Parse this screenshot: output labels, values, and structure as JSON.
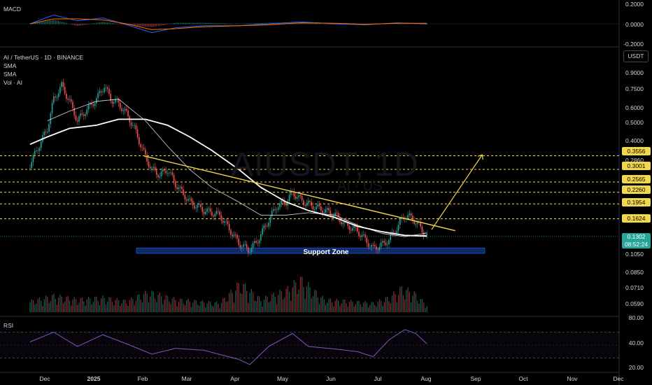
{
  "panes": {
    "macd_title": "MACD",
    "main_title": "AI / TetherUS · 1D · BINANCE",
    "indicators": [
      "SMA",
      "SMA",
      "Vol · AI"
    ],
    "rsi_title": "RSI",
    "currency": "USDT",
    "watermark": "AIUSDT, 1D",
    "watermark_sub": "AI · US"
  },
  "axes": {
    "macd_ticks": [
      "0.2000",
      "0.0000",
      "-0.2000"
    ],
    "price_ticks": [
      "0.9000",
      "0.7500",
      "0.6000",
      "0.5000",
      "0.4000",
      "0.2860",
      "0.1050",
      "0.0850",
      "0.0710",
      "0.0590"
    ],
    "rsi_ticks": [
      "80.00",
      "40.00",
      "20.00"
    ],
    "months": [
      "Dec",
      "2025",
      "Feb",
      "Mar",
      "Apr",
      "May",
      "Jun",
      "Jul",
      "Aug",
      "Sep",
      "Oct",
      "Nov",
      "Dec"
    ]
  },
  "price_levels": [
    "0.3556",
    "0.3001",
    "0.2565",
    "0.2260",
    "0.1954",
    "0.1624"
  ],
  "last_price": {
    "value": "0.1302",
    "countdown": "08:52:24"
  },
  "annotations": {
    "support_zone": "Support Zone"
  },
  "colors": {
    "up": "#26a69a",
    "down": "#ef5350",
    "level": "#f2d64b",
    "trendline": "#f2d64b",
    "sma_fast": "#ffffff",
    "sma_slow": "#ffffff",
    "rsi": "#7e57c2",
    "support_fill": "#0d2a66"
  },
  "chart_data": {
    "type": "line",
    "title": "AI / TetherUS · 1D · BINANCE",
    "xlabel": "",
    "ylabel": "",
    "scale": "log",
    "ylim": [
      0.0535,
      1.08
    ],
    "series": [
      {
        "kind": "close",
        "x": [
          "2024-11-20",
          "2024-12-01",
          "2024-12-05",
          "2024-12-10",
          "2024-12-15",
          "2024-12-20",
          "2024-12-25",
          "2025-01-01",
          "2025-01-06",
          "2025-01-10",
          "2025-01-15",
          "2025-01-20",
          "2025-01-25",
          "2025-02-01",
          "2025-02-05",
          "2025-02-10",
          "2025-02-15",
          "2025-02-20",
          "2025-03-01",
          "2025-03-10",
          "2025-03-20",
          "2025-04-01",
          "2025-04-07",
          "2025-04-12",
          "2025-04-20",
          "2025-04-25",
          "2025-05-01",
          "2025-05-05",
          "2025-05-12",
          "2025-05-18",
          "2025-05-25",
          "2025-06-01",
          "2025-06-08",
          "2025-06-15",
          "2025-06-20",
          "2025-06-25",
          "2025-07-01",
          "2025-07-05",
          "2025-07-10",
          "2025-07-15",
          "2025-07-20",
          "2025-07-25",
          "2025-07-29"
        ],
        "values": [
          0.32,
          0.5,
          0.72,
          0.85,
          0.7,
          0.55,
          0.62,
          0.72,
          0.85,
          0.72,
          0.68,
          0.6,
          0.5,
          0.35,
          0.3,
          0.28,
          0.3,
          0.25,
          0.2,
          0.18,
          0.17,
          0.12,
          0.11,
          0.12,
          0.16,
          0.19,
          0.2,
          0.225,
          0.2,
          0.19,
          0.18,
          0.17,
          0.15,
          0.14,
          0.125,
          0.112,
          0.118,
          0.125,
          0.145,
          0.17,
          0.163,
          0.145,
          0.1302
        ]
      },
      {
        "name": "SMA",
        "kind": "sma_fast",
        "x": [
          "2024-12-01",
          "2024-12-15",
          "2025-01-01",
          "2025-01-15",
          "2025-02-01",
          "2025-02-15",
          "2025-03-01",
          "2025-03-15",
          "2025-04-01",
          "2025-04-15",
          "2025-05-01",
          "2025-05-15",
          "2025-06-01",
          "2025-06-15",
          "2025-07-01",
          "2025-07-15",
          "2025-07-29"
        ],
        "values": [
          0.55,
          0.62,
          0.7,
          0.72,
          0.55,
          0.4,
          0.3,
          0.24,
          0.2,
          0.17,
          0.17,
          0.175,
          0.17,
          0.15,
          0.135,
          0.13,
          0.136
        ]
      },
      {
        "name": "SMA",
        "kind": "sma_slow",
        "x": [
          "2024-11-20",
          "2024-12-01",
          "2024-12-15",
          "2025-01-01",
          "2025-01-15",
          "2025-02-01",
          "2025-02-15",
          "2025-03-01",
          "2025-03-15",
          "2025-04-01",
          "2025-04-15",
          "2025-05-01",
          "2025-05-15",
          "2025-06-01",
          "2025-06-15",
          "2025-07-01",
          "2025-07-15",
          "2025-07-29"
        ],
        "values": [
          0.41,
          0.45,
          0.5,
          0.52,
          0.56,
          0.56,
          0.52,
          0.45,
          0.38,
          0.3,
          0.24,
          0.2,
          0.18,
          0.165,
          0.148,
          0.138,
          0.132,
          0.131
        ]
      }
    ],
    "volume": {
      "x": [
        "2024-11-20",
        "2024-12-05",
        "2024-12-20",
        "2025-01-05",
        "2025-01-20",
        "2025-02-03",
        "2025-02-20",
        "2025-03-05",
        "2025-03-20",
        "2025-04-02",
        "2025-04-15",
        "2025-05-01",
        "2025-05-10",
        "2025-05-25",
        "2025-06-10",
        "2025-06-25",
        "2025-07-05",
        "2025-07-13",
        "2025-07-20",
        "2025-07-29"
      ],
      "values": [
        0.3,
        0.45,
        0.35,
        0.4,
        0.3,
        0.55,
        0.35,
        0.3,
        0.25,
        0.8,
        0.35,
        0.6,
        0.9,
        0.35,
        0.3,
        0.25,
        0.4,
        0.65,
        0.55,
        0.2
      ]
    },
    "macd": {
      "x": [
        "2024-11-20",
        "2024-12-05",
        "2024-12-20",
        "2025-01-05",
        "2025-01-20",
        "2025-02-05",
        "2025-02-20",
        "2025-03-10",
        "2025-04-01",
        "2025-04-20",
        "2025-05-10",
        "2025-06-01",
        "2025-06-20",
        "2025-07-10",
        "2025-07-29"
      ],
      "macd": [
        0.0,
        0.09,
        0.03,
        0.06,
        -0.01,
        -0.09,
        -0.04,
        -0.02,
        -0.02,
        0.0,
        0.02,
        0.0,
        -0.01,
        0.01,
        0.0
      ],
      "signal": [
        0.0,
        0.05,
        0.05,
        0.04,
        0.0,
        -0.06,
        -0.05,
        -0.03,
        -0.02,
        -0.01,
        0.01,
        0.005,
        -0.005,
        0.005,
        0.005
      ]
    },
    "rsi": {
      "x": [
        "2024-11-20",
        "2024-12-05",
        "2024-12-20",
        "2025-01-05",
        "2025-01-20",
        "2025-02-05",
        "2025-02-20",
        "2025-03-10",
        "2025-04-01",
        "2025-04-08",
        "2025-04-20",
        "2025-05-05",
        "2025-05-15",
        "2025-06-01",
        "2025-06-15",
        "2025-06-25",
        "2025-07-05",
        "2025-07-15",
        "2025-07-22",
        "2025-07-29"
      ],
      "values": [
        55,
        70,
        48,
        66,
        52,
        36,
        45,
        42,
        28,
        20,
        48,
        68,
        48,
        44,
        40,
        32,
        58,
        74,
        68,
        52
      ],
      "levels": [
        70,
        30
      ]
    },
    "levels": [
      0.3556,
      0.3001,
      0.2565,
      0.226,
      0.1954,
      0.1624
    ],
    "support_zone": [
      0.1055,
      0.113
    ],
    "trendline": {
      "x": [
        "2025-01-31",
        "2025-08-16"
      ],
      "values": [
        0.355,
        0.14
      ]
    },
    "projection": {
      "x": [
        "2025-08-01",
        "2025-09-02"
      ],
      "values": [
        0.142,
        0.36
      ]
    }
  }
}
